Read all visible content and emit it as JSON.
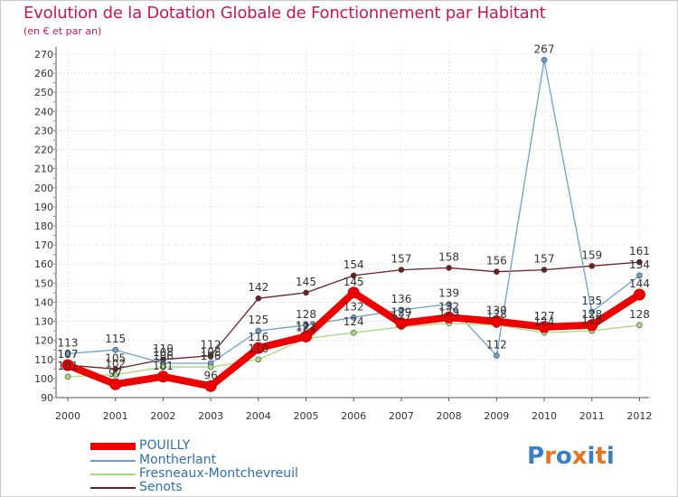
{
  "header": {
    "title": "Evolution de la Dotation Globale de Fonctionnement par Habitant",
    "subtitle": "(en € et par an)"
  },
  "logo": {
    "text": "Proxiti"
  },
  "chart_data": {
    "type": "line",
    "title": "Evolution de la Dotation Globale de Fonctionnement par Habitant",
    "subtitle": "(en € et par an)",
    "xlabel": "",
    "ylabel": "",
    "x": [
      "2000",
      "2001",
      "2002",
      "2003",
      "2004",
      "2005",
      "2006",
      "2007",
      "2008",
      "2009",
      "2010",
      "2011",
      "2012"
    ],
    "ylim": [
      90,
      270
    ],
    "yticks": [
      90,
      100,
      110,
      120,
      130,
      140,
      150,
      160,
      170,
      180,
      190,
      200,
      210,
      220,
      230,
      240,
      250,
      260,
      270
    ],
    "grid": true,
    "legend_position": "bottom-left",
    "series": [
      {
        "name": "Senots",
        "color": "#6b2020",
        "values": [
          107,
          105,
          110,
          112,
          142,
          145,
          154,
          157,
          158,
          156,
          157,
          159,
          161
        ],
        "labels": [
          "107",
          "105",
          "110",
          "112",
          "142",
          "145",
          "154",
          "157",
          "158",
          "156",
          "157",
          "159",
          "161"
        ]
      },
      {
        "name": "Montherlant",
        "color": "#6aa0cf",
        "values": [
          113,
          115,
          108,
          108,
          125,
          128,
          132,
          136,
          139,
          112,
          267,
          135,
          154
        ],
        "labels": [
          "113",
          "115",
          "108",
          "108",
          "125",
          "128",
          "132",
          "136",
          "139",
          "112",
          "267",
          "135",
          "154"
        ]
      },
      {
        "name": "Fresneaux-Montchevreuil",
        "color": "#a8dc7a",
        "values": [
          101,
          102,
          106,
          106,
          110,
          121,
          124,
          127,
          129,
          128,
          124,
          125,
          128
        ],
        "labels": [
          "101",
          "102",
          "106",
          "106",
          "110",
          "121",
          "124",
          "127",
          "129",
          "128",
          "124",
          "125",
          "128"
        ]
      },
      {
        "name": "POUILLY",
        "color": "#ee0000",
        "values": [
          107,
          97,
          101,
          96,
          116,
          122,
          145,
          129,
          132,
          130,
          127,
          128,
          144
        ],
        "labels": [
          "107",
          "97",
          "101",
          "96",
          "116",
          "122",
          "145",
          "129",
          "132",
          "130",
          "127",
          "128",
          "144"
        ]
      }
    ],
    "legend_order": [
      "POUILLY",
      "Montherlant",
      "Fresneaux-Montchevreuil",
      "Senots"
    ]
  }
}
